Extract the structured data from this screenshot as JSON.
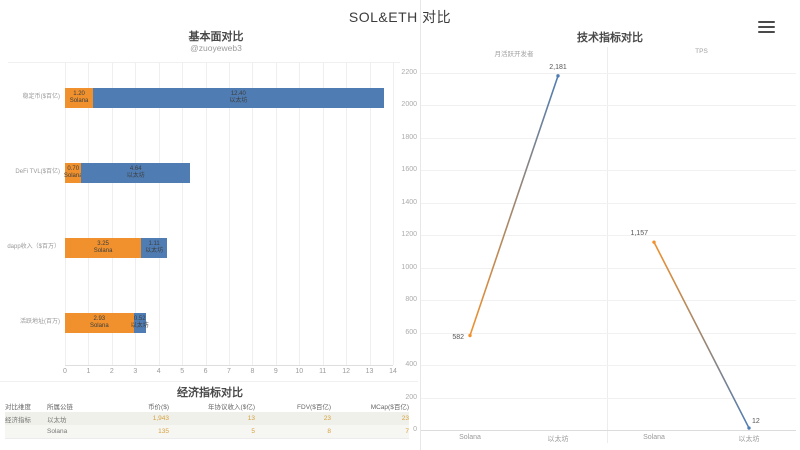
{
  "page": {
    "title": "SOL&ETH 对比"
  },
  "menu": {
    "icon": "hamburger-menu-icon"
  },
  "colors": {
    "solana_orange": "#F0912D",
    "ethereum_blue": "#4F7DB3",
    "table_value": "#D8A13E",
    "grid": "#efefef"
  },
  "chart_data": [
    {
      "type": "bar",
      "orientation": "horizontal-stacked",
      "title": "基本面对比",
      "subtitle": "@zuoyeweb3",
      "categories": [
        "稳定币($百亿)",
        "DeFi TVL($百亿)",
        "dapp收入（$百万）",
        "活跃地址(百万)"
      ],
      "series": [
        {
          "name": "Solana",
          "color": "#F0912D",
          "values": [
            1.2,
            0.7,
            3.25,
            2.93
          ],
          "labels": [
            "1.20",
            "0.70",
            "3.25",
            "2.93"
          ]
        },
        {
          "name": "以太坊",
          "color": "#4F7DB3",
          "values": [
            12.4,
            4.64,
            1.11,
            0.52
          ],
          "labels": [
            "12.40",
            "4.64",
            "1.11",
            "0.52"
          ]
        }
      ],
      "xlim": [
        0,
        14
      ],
      "xticks": [
        0,
        1,
        2,
        3,
        4,
        5,
        6,
        7,
        8,
        9,
        10,
        11,
        12,
        13,
        14
      ],
      "grid": true,
      "legend_position": "inside-bars"
    },
    {
      "type": "line",
      "title": "技术指标对比",
      "ylim": [
        0,
        2200
      ],
      "yticks": [
        0,
        200,
        400,
        600,
        800,
        1000,
        1200,
        1400,
        1600,
        1800,
        2000,
        2200
      ],
      "grid": true,
      "line_gradient": [
        "#F0912D",
        "#4F7DB3"
      ],
      "panels": [
        {
          "name": "月活跃开发者",
          "x": [
            "Solana",
            "以太坊"
          ],
          "values": [
            582,
            2181
          ],
          "labels": [
            "582",
            "2,181"
          ]
        },
        {
          "name": "TPS",
          "x": [
            "Solana",
            "以太坊"
          ],
          "values": [
            1157,
            12
          ],
          "labels": [
            "1,157",
            "12"
          ]
        }
      ]
    },
    {
      "type": "table",
      "title": "经济指标对比",
      "headers": [
        "对比维度",
        "所属公链",
        "币价($)",
        "年协议收入($亿)",
        "FDV($百亿)",
        "MCap($百亿)"
      ],
      "rows": [
        [
          "经济指标",
          "以太坊",
          "1,943",
          "13",
          "23",
          "23"
        ],
        [
          "",
          "Solana",
          "135",
          "5",
          "8",
          "7"
        ]
      ]
    }
  ]
}
